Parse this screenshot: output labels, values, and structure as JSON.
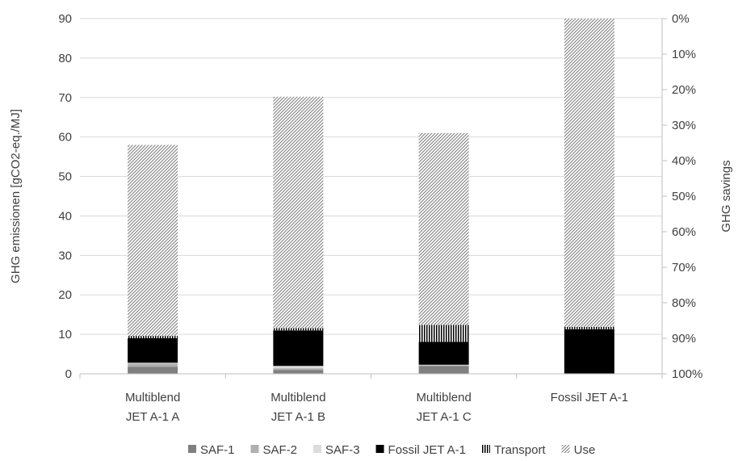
{
  "chart_data": {
    "type": "bar",
    "stacked": true,
    "categories": [
      [
        "Multiblend",
        "JET A-1 A"
      ],
      [
        "Multiblend",
        "JET A-1 B"
      ],
      [
        "Multiblend",
        "JET A-1 C"
      ],
      [
        "Fossil JET A-1"
      ]
    ],
    "series": [
      {
        "name": "SAF-1",
        "values": [
          1.8,
          1.0,
          2.0,
          0
        ],
        "color": "#808080",
        "pattern": "solid"
      },
      {
        "name": "SAF-2",
        "values": [
          0.8,
          0.4,
          0.2,
          0
        ],
        "color": "#b0b0b0",
        "pattern": "solid"
      },
      {
        "name": "SAF-3",
        "values": [
          0.2,
          0.6,
          0.1,
          0
        ],
        "color": "#dcdcdc",
        "pattern": "solid"
      },
      {
        "name": "Fossil JET A-1",
        "values": [
          6.2,
          9.0,
          5.8,
          11.3
        ],
        "color": "#000000",
        "pattern": "solid"
      },
      {
        "name": "Transport",
        "values": [
          0.6,
          0.6,
          4.3,
          0.6
        ],
        "color": "#000000",
        "pattern": "vertical-lines"
      },
      {
        "name": "Use",
        "values": [
          48.4,
          58.6,
          48.6,
          78.1
        ],
        "color": "#808080",
        "pattern": "diagonal-lines"
      }
    ],
    "ylabel": "GHG emissionen [gCO2-eq./MJ]",
    "ylim": [
      0,
      90
    ],
    "yticks": [
      "0",
      "10",
      "20",
      "30",
      "40",
      "50",
      "60",
      "70",
      "80",
      "90"
    ],
    "y2label": "GHG savings",
    "y2ticks": [
      "0%",
      "10%",
      "20%",
      "30%",
      "40%",
      "50%",
      "60%",
      "70%",
      "80%",
      "90%",
      "100%"
    ],
    "y2_direction": "top-to-bottom",
    "grid": true,
    "legend_position": "bottom"
  }
}
